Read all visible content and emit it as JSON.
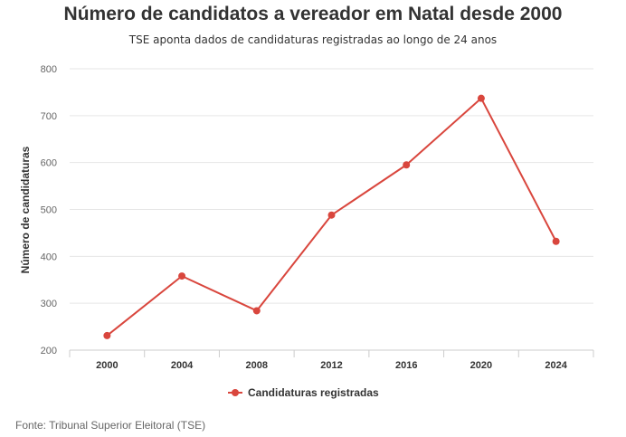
{
  "chart_data": {
    "type": "line",
    "title": "Número de candidatos a vereador em Natal desde 2000",
    "subtitle": "TSE aponta dados de candidaturas registradas ao longo de 24 anos",
    "ylabel": "Número de candidaturas",
    "xlabel": "",
    "categories": [
      "2000",
      "2004",
      "2008",
      "2012",
      "2016",
      "2020",
      "2024"
    ],
    "series": [
      {
        "name": "Candidaturas registradas",
        "values": [
          231,
          358,
          284,
          488,
          595,
          737,
          432
        ],
        "color": "#d9463d"
      }
    ],
    "ylim": [
      200,
      800
    ],
    "yticks": [
      200,
      300,
      400,
      500,
      600,
      700,
      800
    ],
    "grid": true,
    "legend_position": "bottom-center"
  },
  "source": "Fonte: Tribunal Superior Eleitoral (TSE)"
}
